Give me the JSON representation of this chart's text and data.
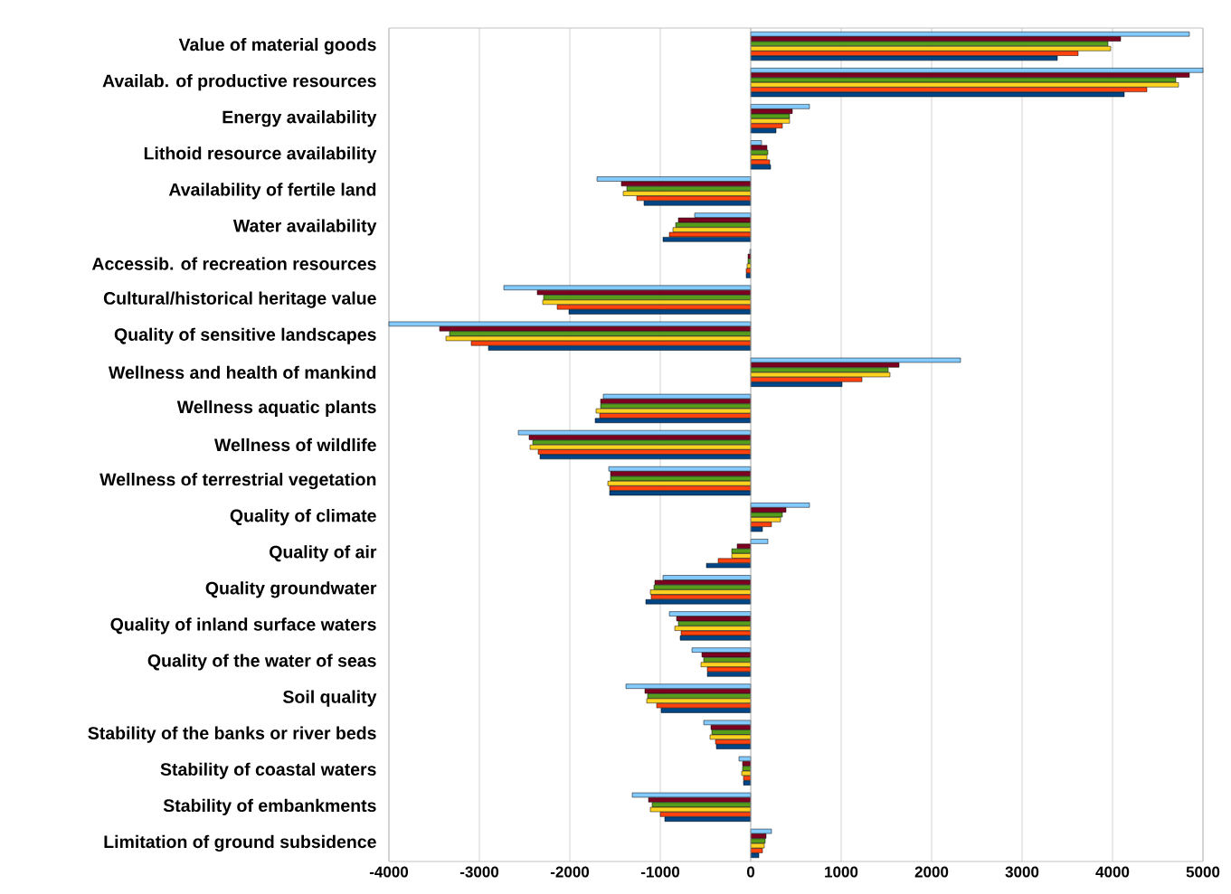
{
  "chart_data": {
    "type": "bar",
    "orientation": "horizontal",
    "grid": "x",
    "categories": [
      "Value of material goods",
      "Availab. of productive resources",
      "Energy availability",
      "Lithoid resource availability",
      "Availability of fertile land",
      "Water availability",
      "Accessib. of recreation resources",
      "Cultural/historical heritage value",
      "Quality of sensitive landscapes",
      "Wellness and health of mankind",
      "Wellness aquatic plants",
      "Wellness of wildlife",
      "Wellness of terrestrial vegetation",
      "Quality of climate",
      "Quality of air",
      "Quality groundwater",
      "Quality of inland surface waters",
      "Quality of the water of seas",
      "Soil quality",
      "Stability of the banks or river beds",
      "Stability of coastal waters",
      "Stability of embankments",
      "Limitation of ground subsidence"
    ],
    "series": [
      {
        "color": "#83caff",
        "values": [
          4850,
          5000,
          650,
          120,
          -1700,
          -620,
          -10,
          -2730,
          -4000,
          2320,
          -1630,
          -2570,
          -1570,
          650,
          190,
          -970,
          -900,
          -650,
          -1380,
          -520,
          -130,
          -1310,
          230
        ]
      },
      {
        "color": "#7e0021",
        "values": [
          4090,
          4850,
          460,
          180,
          -1430,
          -800,
          -30,
          -2360,
          -3440,
          1640,
          -1660,
          -2450,
          -1550,
          390,
          -150,
          -1060,
          -820,
          -540,
          -1170,
          -440,
          -90,
          -1130,
          170
        ]
      },
      {
        "color": "#579d1c",
        "values": [
          3950,
          4700,
          430,
          190,
          -1370,
          -830,
          -30,
          -2290,
          -3330,
          1520,
          -1660,
          -2410,
          -1550,
          350,
          -210,
          -1070,
          -800,
          -520,
          -1140,
          -430,
          -90,
          -1090,
          160
        ]
      },
      {
        "color": "#ffd320",
        "values": [
          3980,
          4730,
          430,
          180,
          -1410,
          -860,
          -40,
          -2300,
          -3370,
          1540,
          -1710,
          -2440,
          -1580,
          330,
          -210,
          -1110,
          -840,
          -550,
          -1150,
          -450,
          -100,
          -1110,
          150
        ]
      },
      {
        "color": "#ff420e",
        "values": [
          3620,
          4380,
          350,
          210,
          -1260,
          -900,
          -50,
          -2140,
          -3090,
          1230,
          -1670,
          -2350,
          -1560,
          230,
          -360,
          -1100,
          -770,
          -480,
          -1040,
          -390,
          -80,
          -1000,
          130
        ]
      },
      {
        "color": "#004586",
        "values": [
          3390,
          4130,
          280,
          220,
          -1180,
          -970,
          -50,
          -2010,
          -2900,
          1010,
          -1720,
          -2330,
          -1560,
          130,
          -490,
          -1160,
          -780,
          -480,
          -990,
          -380,
          -80,
          -950,
          90
        ]
      }
    ],
    "xlim": [
      -4000,
      5000
    ],
    "xticks": [
      -4000,
      -3000,
      -2000,
      -1000,
      0,
      1000,
      2000,
      3000,
      4000,
      5000
    ]
  }
}
